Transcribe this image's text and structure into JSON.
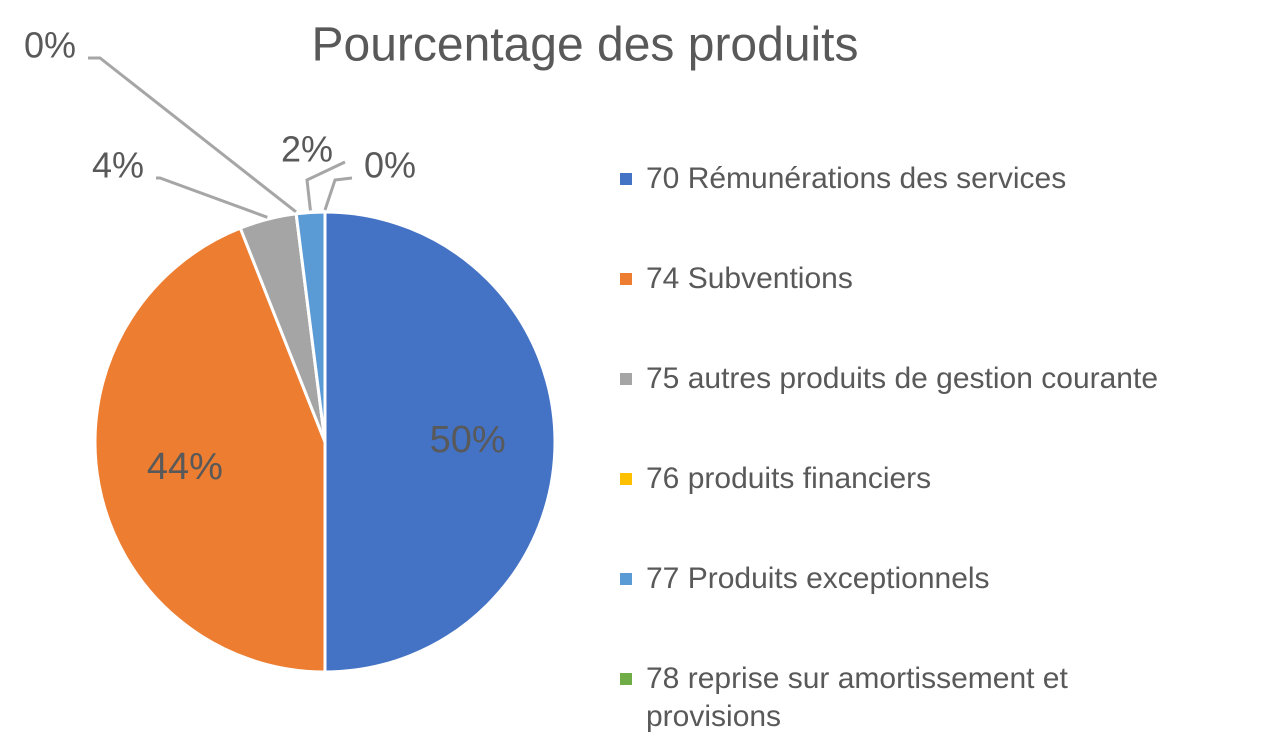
{
  "chart_data": {
    "type": "pie",
    "title": "Pourcentage des produits",
    "categories": [
      "70 Rémunérations des services",
      "74 Subventions",
      "75 autres produits de gestion courante",
      "76 produits financiers",
      "77 Produits exceptionnels",
      "78 reprise sur amortissement et provisions"
    ],
    "values": [
      50,
      44,
      4,
      0,
      2,
      0
    ],
    "value_labels": [
      "50%",
      "44%",
      "4%",
      "0%",
      "2%",
      "0%"
    ],
    "colors": [
      "#4472c4",
      "#ed7d31",
      "#a5a5a5",
      "#ffc000",
      "#5b9bd5",
      "#70ad47"
    ],
    "legend": "right"
  }
}
